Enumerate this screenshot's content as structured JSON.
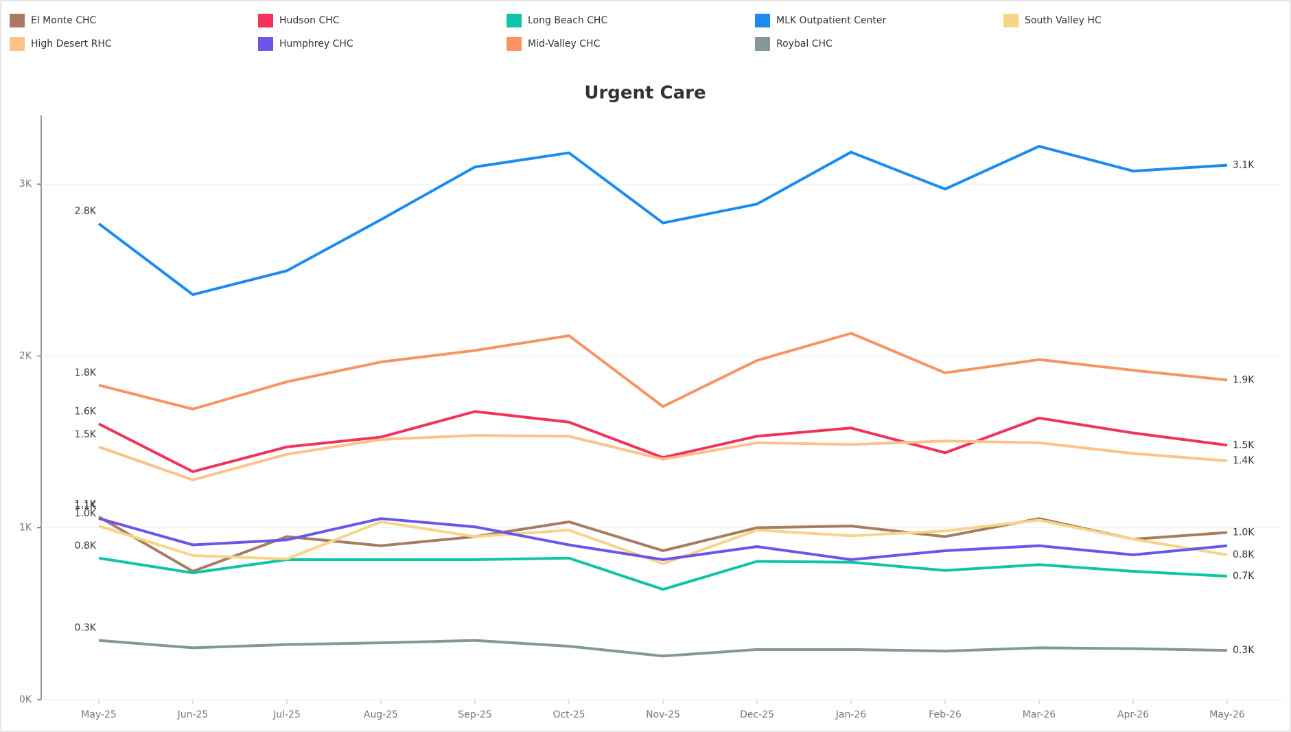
{
  "chart_data": {
    "type": "line",
    "title": "Urgent Care",
    "categories": [
      "May-25",
      "Jun-25",
      "Jul-25",
      "Aug-25",
      "Sep-25",
      "Oct-25",
      "Nov-25",
      "Dec-25",
      "Jan-26",
      "Feb-26",
      "Mar-26",
      "Apr-26",
      "May-26"
    ],
    "ylim": [
      0,
      3400
    ],
    "yticks": [
      {
        "value": 0,
        "label": "0K"
      },
      {
        "value": 1000,
        "label": "1K"
      },
      {
        "value": 2000,
        "label": "2K"
      },
      {
        "value": 3000,
        "label": "3K"
      }
    ],
    "grid": true,
    "legend": "top",
    "series": [
      {
        "name": "El Monte CHC",
        "color": "#a87c5f",
        "values": [
          1064,
          747,
          949,
          896,
          949,
          1035,
          867,
          1001,
          1011,
          949,
          1054,
          934,
          973
        ],
        "value_labels": [
          "1.1K",
          null,
          null,
          null,
          null,
          null,
          null,
          null,
          null,
          null,
          null,
          null,
          "1.0K"
        ]
      },
      {
        "name": "Hudson CHC",
        "color": "#f2325a",
        "values": [
          1605,
          1327,
          1471,
          1528,
          1677,
          1615,
          1409,
          1533,
          1581,
          1437,
          1639,
          1552,
          1481
        ],
        "value_labels": [
          "1.6K",
          null,
          null,
          null,
          null,
          null,
          null,
          null,
          null,
          null,
          null,
          null,
          "1.5K"
        ]
      },
      {
        "name": "Long Beach CHC",
        "color": "#0fc4a7",
        "values": [
          824,
          738,
          815,
          815,
          815,
          824,
          642,
          805,
          800,
          752,
          786,
          747,
          719
        ],
        "value_labels": [
          "0.8K",
          null,
          null,
          null,
          null,
          null,
          null,
          null,
          null,
          null,
          null,
          null,
          "0.7K"
        ]
      },
      {
        "name": "MLK Outpatient Center",
        "color": "#1a8cf0",
        "values": [
          2770,
          2357,
          2496,
          2793,
          3100,
          3182,
          2774,
          2884,
          3186,
          2971,
          3220,
          3076,
          3110
        ],
        "value_labels": [
          "2.8K",
          null,
          null,
          null,
          null,
          null,
          null,
          null,
          null,
          null,
          null,
          null,
          "3.1K"
        ]
      },
      {
        "name": "South Valley HC",
        "color": "#f7d488",
        "values": [
          1011,
          839,
          819,
          1035,
          949,
          987,
          791,
          987,
          954,
          982,
          1045,
          934,
          843
        ],
        "value_labels": [
          "1.0K",
          null,
          null,
          null,
          null,
          null,
          null,
          null,
          null,
          null,
          null,
          null,
          "0.8K"
        ]
      },
      {
        "name": "High Desert RHC",
        "color": "#fdc28a",
        "values": [
          1471,
          1279,
          1428,
          1514,
          1538,
          1533,
          1399,
          1495,
          1485,
          1505,
          1495,
          1433,
          1390
        ],
        "value_labels": [
          "1.5K",
          null,
          null,
          null,
          null,
          null,
          null,
          null,
          null,
          null,
          null,
          null,
          "1.4K"
        ]
      },
      {
        "name": "Humphrey CHC",
        "color": "#6a56ea",
        "values": [
          1055,
          901,
          930,
          1054,
          1006,
          901,
          815,
          891,
          815,
          867,
          896,
          843,
          896
        ],
        "value_labels": [
          "1.1K",
          null,
          null,
          null,
          null,
          null,
          null,
          null,
          null,
          null,
          null,
          null,
          null
        ]
      },
      {
        "name": "Mid-Valley CHC",
        "color": "#f79462",
        "values": [
          1830,
          1691,
          1850,
          1965,
          2032,
          2118,
          1706,
          1974,
          2132,
          1902,
          1979,
          1917,
          1860
        ],
        "value_labels": [
          "1.8K",
          null,
          null,
          null,
          null,
          null,
          null,
          null,
          null,
          null,
          null,
          null,
          "1.9K"
        ]
      },
      {
        "name": "Roybal CHC",
        "color": "#849897",
        "values": [
          345,
          302,
          321,
          331,
          345,
          311,
          254,
          292,
          292,
          283,
          302,
          297,
          287
        ],
        "value_labels": [
          "0.3K",
          null,
          null,
          null,
          null,
          null,
          null,
          null,
          null,
          null,
          null,
          null,
          "0.3K"
        ]
      }
    ]
  }
}
